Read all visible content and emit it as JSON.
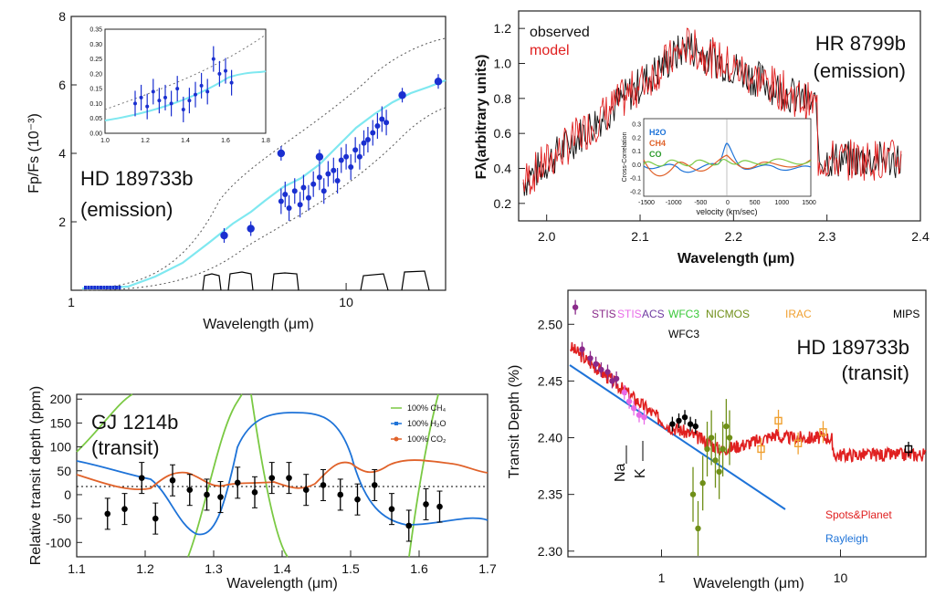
{
  "chart_data": [
    {
      "type": "scatter",
      "annotation": [
        "HD 189733b",
        "(emission)"
      ],
      "xlabel": "Wavelength  (μm)",
      "ylabel": "Fp/Fs (10⁻³)",
      "xscale": "log",
      "xlim": [
        1,
        23
      ],
      "ylim": [
        0,
        8
      ],
      "xticks": [
        "1",
        "10"
      ],
      "yticks": [
        "2",
        "4",
        "6",
        "8"
      ],
      "series": [
        {
          "name": "observed",
          "x": [
            5.8,
            6.0,
            6.2,
            6.5,
            6.8,
            7.0,
            7.3,
            7.6,
            8.0,
            8.3,
            8.6,
            9.0,
            9.3,
            9.6,
            10.0,
            10.4,
            10.8,
            11.2,
            11.6,
            12.0,
            12.5,
            13.0,
            13.5,
            14.0
          ],
          "y": [
            2.6,
            2.8,
            2.4,
            2.9,
            2.5,
            3.0,
            2.7,
            3.1,
            3.3,
            2.9,
            3.4,
            3.5,
            3.2,
            3.8,
            3.9,
            3.6,
            4.1,
            3.9,
            4.3,
            4.4,
            4.6,
            4.8,
            5.0,
            4.9
          ]
        },
        {
          "name": "photometry",
          "x": [
            3.6,
            4.5,
            5.8,
            8.0,
            16.0,
            24.0
          ],
          "y": [
            1.6,
            1.8,
            4.0,
            3.9,
            5.7,
            6.1
          ]
        }
      ],
      "inset": {
        "xlim": [
          1.0,
          1.8
        ],
        "ylim": [
          0,
          0.35
        ],
        "xticks": [
          "1.0",
          "1.2",
          "1.4",
          "1.6",
          "1.8"
        ],
        "yticks": [
          "0.00",
          "0.05",
          "0.10",
          "0.15",
          "0.20",
          "0.25",
          "0.30",
          "0.35"
        ],
        "x": [
          1.15,
          1.18,
          1.21,
          1.24,
          1.27,
          1.3,
          1.33,
          1.36,
          1.39,
          1.42,
          1.45,
          1.48,
          1.51,
          1.54,
          1.57,
          1.6,
          1.63
        ],
        "y": [
          0.1,
          0.12,
          0.09,
          0.14,
          0.11,
          0.12,
          0.1,
          0.15,
          0.08,
          0.11,
          0.13,
          0.16,
          0.14,
          0.25,
          0.2,
          0.21,
          0.17
        ]
      }
    },
    {
      "type": "line",
      "annotation": [
        "HR 8799b",
        "(emission)"
      ],
      "legend": [
        "observed",
        "model"
      ],
      "xlabel": "Wavelength (μm)",
      "ylabel": "Fλ(arbitrary units)",
      "xlim": [
        1.97,
        2.4
      ],
      "ylim": [
        0.1,
        1.3
      ],
      "xticks": [
        "2.0",
        "2.1",
        "2.2",
        "2.3",
        "2.4"
      ],
      "yticks": [
        "0.2",
        "0.4",
        "0.6",
        "0.8",
        "1.0",
        "1.2"
      ],
      "inset": {
        "xlabel": "velocity (km/sec)",
        "ylabel": "Cross-Correlation",
        "legend": [
          "H2O",
          "CH4",
          "CO"
        ],
        "xticks": [
          "-1500",
          "-1000",
          "-500",
          "0",
          "500",
          "1000",
          "1500"
        ],
        "yticks": [
          "-0.2",
          "-0.1",
          "0.0",
          "0.1",
          "0.2",
          "0.3"
        ]
      }
    },
    {
      "type": "line",
      "annotation": [
        "GJ 1214b",
        "(transit)"
      ],
      "legend": [
        "100% CH₄",
        "100% H₂O",
        "100% CO₂"
      ],
      "xlabel": "Wavelength  (μm)",
      "ylabel": "Relative transit depth (ppm)",
      "xlim": [
        1.1,
        1.7
      ],
      "ylim": [
        -130,
        210
      ],
      "xticks": [
        "1.1",
        "1.2",
        "1.3",
        "1.4",
        "1.5",
        "1.6",
        "1.7"
      ],
      "yticks": [
        "200",
        "150",
        "100",
        "50",
        "0",
        "-50",
        "-100"
      ],
      "series": [
        {
          "name": "data",
          "x": [
            1.145,
            1.17,
            1.195,
            1.215,
            1.24,
            1.265,
            1.29,
            1.31,
            1.335,
            1.36,
            1.385,
            1.41,
            1.435,
            1.46,
            1.485,
            1.51,
            1.535,
            1.56,
            1.585,
            1.61,
            1.63
          ],
          "y": [
            -40,
            -30,
            35,
            -50,
            30,
            10,
            0,
            -5,
            25,
            5,
            35,
            35,
            10,
            20,
            0,
            -10,
            20,
            -30,
            -65,
            -20,
            -25
          ]
        }
      ]
    },
    {
      "type": "scatter",
      "annotation": [
        "HD 189733b",
        "(transit)"
      ],
      "instruments": [
        "STIS",
        "STIS",
        "ACS",
        "WFC3",
        "NICMOS",
        "IRAC",
        "MIPS",
        "WFC3"
      ],
      "lines": [
        "Na",
        "K"
      ],
      "legend": [
        "Spots&Planet",
        "Rayleigh"
      ],
      "xlabel": "Wavelength  (μm)",
      "ylabel": "Transit Depth (%)",
      "xscale": "log",
      "xlim": [
        0.3,
        30
      ],
      "ylim": [
        2.295,
        2.53
      ],
      "xticks": [
        "1",
        "10"
      ],
      "yticks": [
        "2.30",
        "2.35",
        "2.40",
        "2.45",
        "2.50"
      ],
      "series": [
        {
          "name": "STIS",
          "x": [
            0.33,
            0.36,
            0.4,
            0.43,
            0.46,
            0.5,
            0.53,
            0.56
          ],
          "y": [
            2.515,
            2.478,
            2.47,
            2.465,
            2.46,
            2.458,
            2.45,
            2.452
          ]
        },
        {
          "name": "ACS",
          "x": [
            0.62,
            0.66,
            0.7,
            0.75,
            0.8
          ],
          "y": [
            2.44,
            2.432,
            2.426,
            2.42,
            2.418
          ]
        },
        {
          "name": "WFC3",
          "x": [
            1.15,
            1.25,
            1.35,
            1.45,
            1.55
          ],
          "y": [
            2.412,
            2.415,
            2.418,
            2.412,
            2.41
          ]
        },
        {
          "name": "NICMOS",
          "x": [
            1.5,
            1.6,
            1.7,
            1.8,
            1.9,
            2.0,
            2.1,
            2.2,
            2.3,
            2.4
          ],
          "y": [
            2.35,
            2.32,
            2.36,
            2.39,
            2.4,
            2.38,
            2.37,
            2.39,
            2.41,
            2.4
          ]
        },
        {
          "name": "IRAC",
          "x": [
            3.6,
            4.5,
            5.8,
            8.0
          ],
          "y": [
            2.39,
            2.415,
            2.395,
            2.405
          ]
        },
        {
          "name": "MIPS",
          "x": [
            24.0
          ],
          "y": [
            2.39
          ]
        }
      ]
    }
  ],
  "colors": {
    "model_red": "#e02020",
    "h2o": "#1e73d8",
    "ch4": "#7ac943",
    "co2": "#e0622a",
    "cyan": "#7fe8f0",
    "stis": "#8a2a8a",
    "stis2": "#e86ae8",
    "wfc3": "#38c838",
    "nicmos": "#6f8f18",
    "irac": "#f0a030"
  }
}
